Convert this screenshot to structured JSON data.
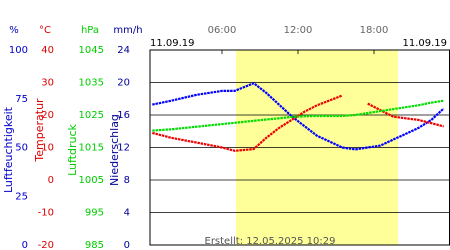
{
  "chart_data": {
    "type": "line",
    "date_left": "11.09.19",
    "date_right": "11.09.19",
    "created": "Erstellt: 12.05.2025 10:29",
    "xlim": [
      0,
      24
    ],
    "xticks": [
      {
        "value": 6,
        "label": "06:00"
      },
      {
        "value": 12,
        "label": "12:00"
      },
      {
        "value": 18,
        "label": "18:00"
      }
    ],
    "daylight": [
      7.1,
      19.9
    ],
    "grid": true,
    "axes": [
      {
        "unit": "%",
        "label": "Luftfeuchtigkeit",
        "color": "#0000cc",
        "lim": [
          0,
          100
        ],
        "ticks": [
          0,
          25,
          50,
          75,
          100
        ]
      },
      {
        "unit": "°C",
        "label": "Temperatur",
        "color": "#dd0000",
        "lim": [
          -20,
          40
        ],
        "ticks": [
          -20,
          -10,
          0,
          10,
          20,
          30,
          40
        ]
      },
      {
        "unit": "hPa",
        "label": "Luftdruck",
        "color": "#00cc00",
        "lim": [
          985,
          1045
        ],
        "ticks": [
          985,
          995,
          1005,
          1015,
          1025,
          1035,
          1045
        ]
      },
      {
        "unit": "mm/h",
        "label": "Niederschlag",
        "color": "#000099",
        "lim": [
          0,
          24
        ],
        "ticks": [
          0,
          4,
          8,
          12,
          16,
          20,
          24
        ]
      }
    ],
    "x": [
      0.5,
      2,
      4,
      6,
      7,
      8.5,
      9.5,
      10.5,
      11.5,
      12.5,
      13.5,
      14.5,
      15.5,
      16.5,
      17.5,
      18.5,
      19.5,
      20.5,
      21.5,
      22.5,
      23.5
    ],
    "series": [
      {
        "name": "Luftfeuchtigkeit",
        "axis": 0,
        "color": "#0000ff",
        "values": [
          72,
          74,
          77,
          79,
          79,
          83,
          78,
          72,
          66,
          61,
          56,
          53,
          50,
          49,
          50,
          51,
          54,
          57,
          60,
          64,
          70
        ]
      },
      {
        "name": "Temperatur",
        "axis": 1,
        "color": "#ee0000",
        "values": [
          14.5,
          13,
          11.5,
          10,
          9,
          9.5,
          13,
          16,
          18.5,
          21,
          23,
          24.5,
          26,
          null,
          23.5,
          21.5,
          19.5,
          19,
          18.5,
          17.5,
          16.5
        ]
      },
      {
        "name": "Luftdruck",
        "axis": 2,
        "color": "#00dd00",
        "values": [
          1020.2,
          1020.6,
          1021.4,
          1022.2,
          1022.6,
          1023.2,
          1023.6,
          1024.0,
          1024.4,
          1024.6,
          1024.7,
          1024.7,
          1024.7,
          1025.0,
          1025.6,
          1026.2,
          1026.8,
          1027.4,
          1028.0,
          1028.8,
          1029.4
        ]
      }
    ]
  }
}
